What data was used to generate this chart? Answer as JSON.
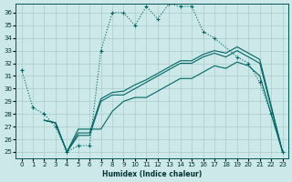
{
  "xlabel": "Humidex (Indice chaleur)",
  "background_color": "#cce8e8",
  "grid_color": "#aacccc",
  "line_color": "#006666",
  "xlim": [
    -0.5,
    23.5
  ],
  "ylim": [
    24.5,
    36.7
  ],
  "yticks": [
    25,
    26,
    27,
    28,
    29,
    30,
    31,
    32,
    33,
    34,
    35,
    36
  ],
  "xticks": [
    0,
    1,
    2,
    3,
    4,
    5,
    6,
    7,
    8,
    9,
    10,
    11,
    12,
    13,
    14,
    15,
    16,
    17,
    18,
    19,
    20,
    21,
    22,
    23
  ],
  "curve1_x": [
    0,
    1,
    2,
    3,
    4,
    5,
    6,
    7,
    8,
    9,
    10,
    11,
    12,
    13,
    14,
    15,
    16,
    17,
    19,
    20,
    21,
    22,
    23
  ],
  "curve1_y": [
    31.5,
    28.5,
    28.0,
    27.0,
    25.0,
    25.5,
    25.5,
    33.0,
    36.0,
    36.0,
    35.0,
    36.5,
    35.5,
    36.7,
    36.5,
    36.5,
    34.5,
    34.0,
    32.5,
    32.0,
    30.5,
    28.0,
    25.0
  ],
  "curve2_x": [
    2,
    3,
    4,
    5,
    6,
    7,
    8,
    9,
    10,
    11,
    12,
    13,
    14,
    15,
    16,
    17,
    18,
    19,
    20,
    21,
    23
  ],
  "curve2_y": [
    27.5,
    27.3,
    25.0,
    26.3,
    26.3,
    29.0,
    29.5,
    29.5,
    30.0,
    30.5,
    31.0,
    31.5,
    32.0,
    32.0,
    32.5,
    32.8,
    32.5,
    33.0,
    32.5,
    32.0,
    25.0
  ],
  "curve3_x": [
    2,
    3,
    4,
    5,
    6,
    7,
    8,
    9,
    10,
    11,
    12,
    13,
    14,
    15,
    16,
    17,
    18,
    19,
    20,
    21,
    23
  ],
  "curve3_y": [
    27.5,
    27.3,
    25.0,
    26.5,
    26.5,
    29.2,
    29.7,
    29.8,
    30.3,
    30.7,
    31.2,
    31.7,
    32.2,
    32.2,
    32.7,
    33.0,
    32.8,
    33.3,
    32.8,
    32.3,
    25.0
  ],
  "curve4_x": [
    2,
    3,
    4,
    5,
    6,
    7,
    8,
    9,
    10,
    11,
    12,
    13,
    14,
    15,
    16,
    17,
    18,
    19,
    20,
    21,
    23
  ],
  "curve4_y": [
    27.5,
    27.3,
    25.0,
    26.8,
    26.8,
    26.8,
    28.2,
    29.0,
    29.3,
    29.3,
    29.8,
    30.3,
    30.8,
    30.8,
    31.3,
    31.8,
    31.6,
    32.1,
    31.8,
    31.0,
    25.0
  ]
}
